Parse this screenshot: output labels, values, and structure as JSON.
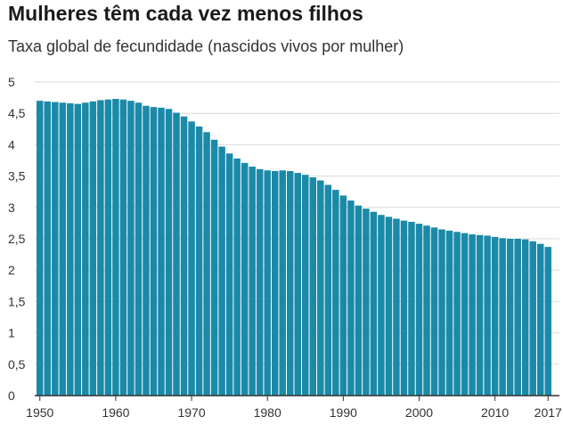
{
  "chart_data": {
    "type": "bar",
    "title": "Mulheres têm cada vez menos filhos",
    "subtitle": "Taxa global de fecundidade (nascidos vivos por mulher)",
    "xlabel": "",
    "ylabel": "",
    "ylim": [
      0,
      5
    ],
    "y_ticks": [
      "0",
      "0,5",
      "1",
      "1,5",
      "2",
      "2,5",
      "3",
      "3,5",
      "4",
      "4,5",
      "5"
    ],
    "x_tick_labels": [
      "1950",
      "1960",
      "1970",
      "1980",
      "1990",
      "2000",
      "2010",
      "2017"
    ],
    "x_tick_years": [
      1950,
      1960,
      1970,
      1980,
      1990,
      2000,
      2010,
      2017
    ],
    "grid": true,
    "bar_color": "#1a8aa8",
    "categories": [
      1950,
      1951,
      1952,
      1953,
      1954,
      1955,
      1956,
      1957,
      1958,
      1959,
      1960,
      1961,
      1962,
      1963,
      1964,
      1965,
      1966,
      1967,
      1968,
      1969,
      1970,
      1971,
      1972,
      1973,
      1974,
      1975,
      1976,
      1977,
      1978,
      1979,
      1980,
      1981,
      1982,
      1983,
      1984,
      1985,
      1986,
      1987,
      1988,
      1989,
      1990,
      1991,
      1992,
      1993,
      1994,
      1995,
      1996,
      1997,
      1998,
      1999,
      2000,
      2001,
      2002,
      2003,
      2004,
      2005,
      2006,
      2007,
      2008,
      2009,
      2010,
      2011,
      2012,
      2013,
      2014,
      2015,
      2016,
      2017
    ],
    "values": [
      4.7,
      4.69,
      4.68,
      4.67,
      4.66,
      4.65,
      4.67,
      4.69,
      4.71,
      4.72,
      4.73,
      4.72,
      4.7,
      4.67,
      4.62,
      4.6,
      4.59,
      4.57,
      4.51,
      4.45,
      4.37,
      4.29,
      4.2,
      4.08,
      3.97,
      3.86,
      3.78,
      3.71,
      3.65,
      3.61,
      3.59,
      3.58,
      3.59,
      3.58,
      3.55,
      3.52,
      3.48,
      3.43,
      3.36,
      3.28,
      3.19,
      3.11,
      3.03,
      2.98,
      2.93,
      2.88,
      2.85,
      2.82,
      2.79,
      2.77,
      2.74,
      2.71,
      2.68,
      2.65,
      2.63,
      2.61,
      2.59,
      2.57,
      2.56,
      2.55,
      2.53,
      2.51,
      2.5,
      2.5,
      2.49,
      2.46,
      2.42,
      2.37
    ]
  }
}
